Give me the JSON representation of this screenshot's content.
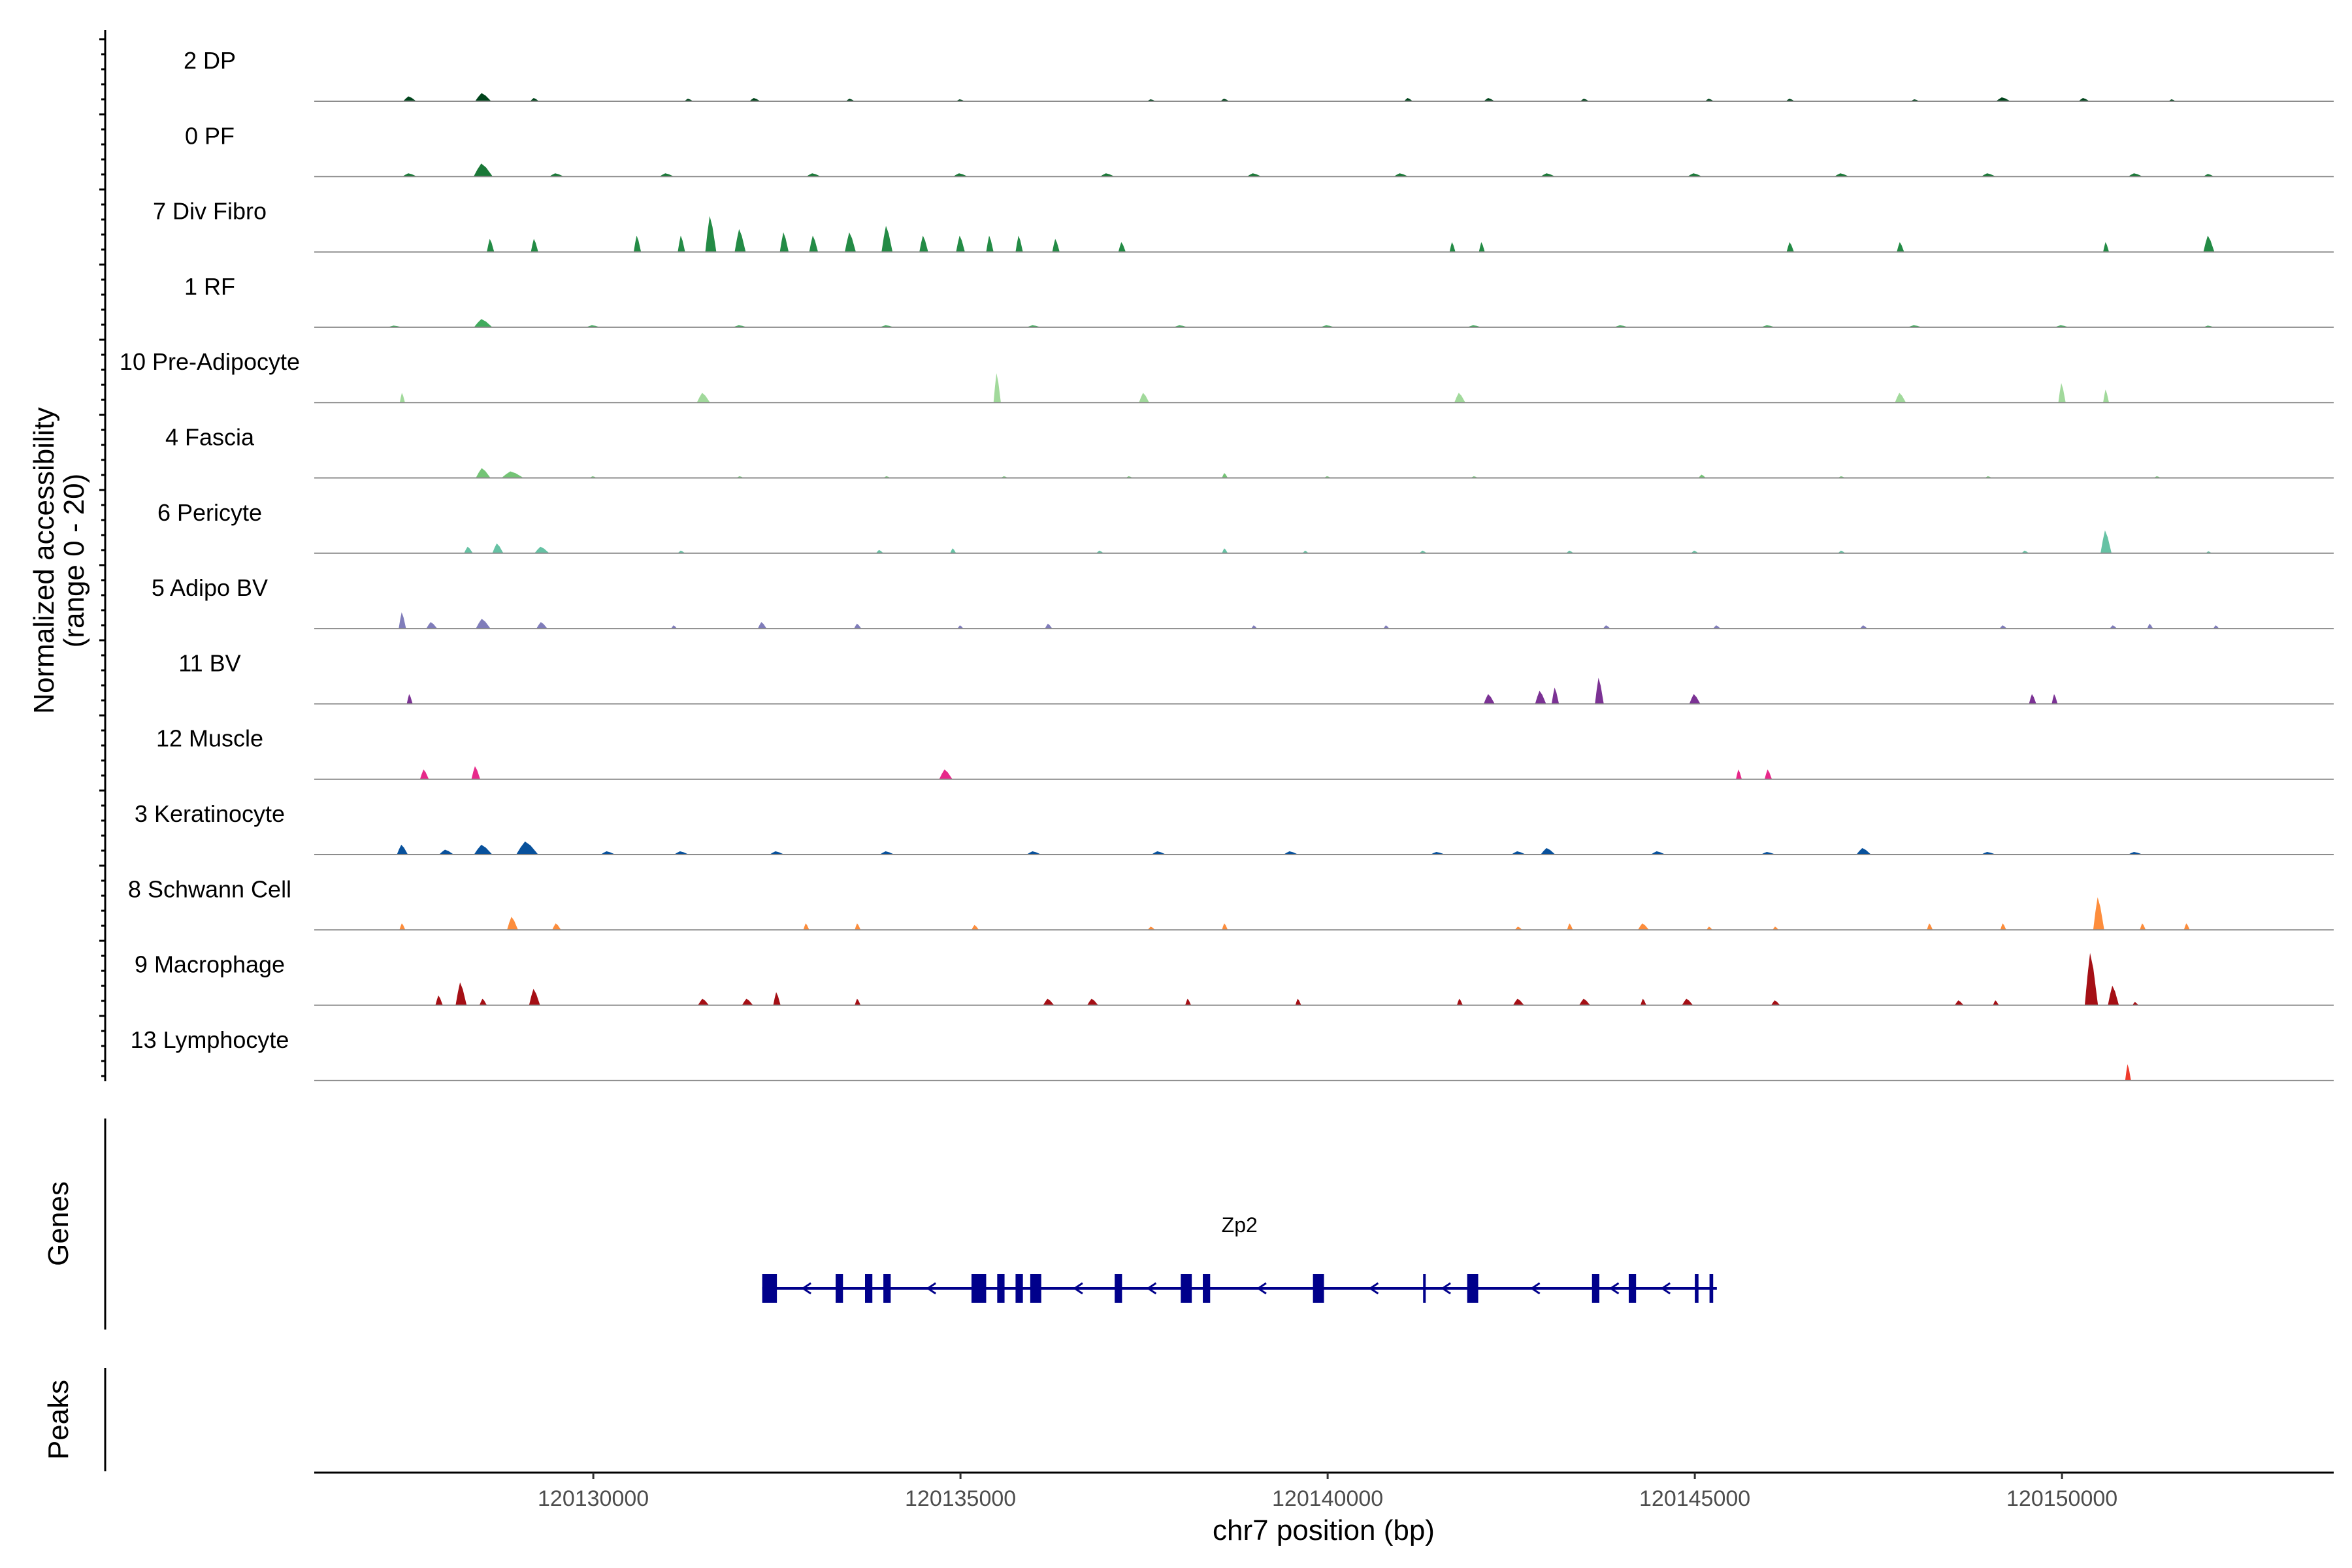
{
  "chart_data": {
    "type": "area",
    "title": "",
    "ylabel_line1": "Normalized accessibility",
    "ylabel_line2": "(range 0 - 20)",
    "xlabel": "chr7 position (bp)",
    "ylim": [
      0,
      20
    ],
    "xlim": [
      120126200,
      120153700
    ],
    "x_ticks": [
      120130000,
      120135000,
      120140000,
      120145000,
      120150000
    ],
    "x_tick_labels": [
      "120130000",
      "120135000",
      "120140000",
      "120145000",
      "120150000"
    ],
    "series": [
      {
        "name": "2 DP",
        "color": "#00441b",
        "peaks": [
          [
            120127500,
            1.5,
            180
          ],
          [
            120128500,
            2.5,
            220
          ],
          [
            120129200,
            1.0,
            120
          ],
          [
            120131300,
            0.8,
            120
          ],
          [
            120132200,
            1.0,
            150
          ],
          [
            120133500,
            0.8,
            120
          ],
          [
            120135000,
            0.6,
            120
          ],
          [
            120137600,
            0.6,
            120
          ],
          [
            120138600,
            0.8,
            120
          ],
          [
            120141100,
            1.0,
            120
          ],
          [
            120142200,
            1.0,
            150
          ],
          [
            120143500,
            0.8,
            120
          ],
          [
            120145200,
            0.8,
            120
          ],
          [
            120146300,
            0.8,
            120
          ],
          [
            120148000,
            0.6,
            120
          ],
          [
            120149200,
            1.2,
            200
          ],
          [
            120150300,
            1.0,
            150
          ],
          [
            120151500,
            0.6,
            100
          ]
        ]
      },
      {
        "name": "0 PF",
        "color": "#1a7837",
        "peaks": [
          [
            120127500,
            1.0,
            200
          ],
          [
            120128500,
            4.0,
            260
          ],
          [
            120129500,
            1.0,
            200
          ],
          [
            120131000,
            1.0,
            200
          ],
          [
            120133000,
            1.0,
            200
          ],
          [
            120135000,
            1.0,
            200
          ],
          [
            120137000,
            1.0,
            200
          ],
          [
            120139000,
            1.0,
            200
          ],
          [
            120141000,
            1.0,
            200
          ],
          [
            120143000,
            1.0,
            200
          ],
          [
            120145000,
            1.0,
            200
          ],
          [
            120147000,
            1.0,
            200
          ],
          [
            120149000,
            1.0,
            200
          ],
          [
            120151000,
            1.0,
            200
          ],
          [
            120152000,
            0.8,
            150
          ]
        ]
      },
      {
        "name": "7 Div Fibro",
        "color": "#238b45",
        "peaks": [
          [
            120128600,
            4.0,
            100
          ],
          [
            120129200,
            4.0,
            100
          ],
          [
            120130600,
            5.0,
            100
          ],
          [
            120131200,
            5.0,
            100
          ],
          [
            120131600,
            11.0,
            150
          ],
          [
            120132000,
            7.0,
            150
          ],
          [
            120132600,
            6.0,
            120
          ],
          [
            120133000,
            5.0,
            120
          ],
          [
            120133500,
            6.0,
            150
          ],
          [
            120134000,
            8.0,
            150
          ],
          [
            120134500,
            5.0,
            120
          ],
          [
            120135000,
            5.0,
            120
          ],
          [
            120135400,
            5.0,
            100
          ],
          [
            120135800,
            5.0,
            100
          ],
          [
            120136300,
            4.0,
            100
          ],
          [
            120137200,
            3.0,
            100
          ],
          [
            120141700,
            3.0,
            80
          ],
          [
            120142100,
            3.0,
            80
          ],
          [
            120146300,
            3.0,
            100
          ],
          [
            120147800,
            3.0,
            100
          ],
          [
            120150600,
            3.0,
            80
          ],
          [
            120152000,
            5.0,
            150
          ]
        ]
      },
      {
        "name": "1 RF",
        "color": "#41ab5d",
        "peaks": [
          [
            120127300,
            0.5,
            200
          ],
          [
            120128500,
            2.5,
            250
          ],
          [
            120130000,
            0.6,
            200
          ],
          [
            120132000,
            0.6,
            200
          ],
          [
            120134000,
            0.6,
            200
          ],
          [
            120136000,
            0.6,
            200
          ],
          [
            120138000,
            0.6,
            200
          ],
          [
            120140000,
            0.6,
            200
          ],
          [
            120142000,
            0.6,
            200
          ],
          [
            120144000,
            0.6,
            200
          ],
          [
            120146000,
            0.6,
            200
          ],
          [
            120148000,
            0.6,
            200
          ],
          [
            120150000,
            0.6,
            200
          ],
          [
            120152000,
            0.5,
            150
          ]
        ]
      },
      {
        "name": "10 Pre-Adipocyte",
        "color": "#a1d99b",
        "peaks": [
          [
            120127400,
            3.0,
            40
          ],
          [
            120131500,
            3.0,
            180
          ],
          [
            120135500,
            9.0,
            100
          ],
          [
            120137500,
            3.0,
            140
          ],
          [
            120141800,
            3.0,
            150
          ],
          [
            120147800,
            3.0,
            150
          ],
          [
            120150000,
            6.0,
            100
          ],
          [
            120150600,
            4.0,
            80
          ]
        ]
      },
      {
        "name": "4 Fascia",
        "color": "#74c476",
        "peaks": [
          [
            120128500,
            3.0,
            200
          ],
          [
            120128900,
            2.0,
            300
          ],
          [
            120130000,
            0.5,
            100
          ],
          [
            120132000,
            0.5,
            100
          ],
          [
            120134000,
            0.5,
            100
          ],
          [
            120135600,
            0.5,
            100
          ],
          [
            120137300,
            0.5,
            100
          ],
          [
            120138600,
            1.5,
            80
          ],
          [
            120140000,
            0.5,
            100
          ],
          [
            120142000,
            0.5,
            100
          ],
          [
            120145100,
            1.0,
            100
          ],
          [
            120147000,
            0.5,
            100
          ],
          [
            120149000,
            0.5,
            100
          ],
          [
            120151300,
            0.5,
            100
          ]
        ]
      },
      {
        "name": "6 Pericyte",
        "color": "#66c2a4",
        "peaks": [
          [
            120128300,
            2.0,
            120
          ],
          [
            120128700,
            3.0,
            150
          ],
          [
            120129300,
            2.0,
            200
          ],
          [
            120131200,
            0.8,
            100
          ],
          [
            120133900,
            1.0,
            100
          ],
          [
            120134900,
            1.5,
            80
          ],
          [
            120136900,
            0.8,
            100
          ],
          [
            120138600,
            1.5,
            80
          ],
          [
            120139700,
            0.8,
            80
          ],
          [
            120141300,
            0.8,
            100
          ],
          [
            120143300,
            0.8,
            100
          ],
          [
            120145000,
            0.8,
            100
          ],
          [
            120147000,
            0.8,
            100
          ],
          [
            120149500,
            0.8,
            100
          ],
          [
            120150600,
            7.0,
            150
          ],
          [
            120152000,
            0.6,
            80
          ]
        ]
      },
      {
        "name": "5 Adipo BV",
        "color": "#807dba",
        "peaks": [
          [
            120127400,
            5.0,
            100
          ],
          [
            120127800,
            2.0,
            150
          ],
          [
            120128500,
            3.0,
            200
          ],
          [
            120129300,
            2.0,
            150
          ],
          [
            120131100,
            1.0,
            80
          ],
          [
            120132300,
            2.0,
            120
          ],
          [
            120133600,
            1.5,
            100
          ],
          [
            120135000,
            1.0,
            80
          ],
          [
            120136200,
            1.5,
            100
          ],
          [
            120139000,
            1.0,
            80
          ],
          [
            120140800,
            1.0,
            80
          ],
          [
            120143800,
            1.0,
            100
          ],
          [
            120145300,
            1.0,
            100
          ],
          [
            120147300,
            1.0,
            100
          ],
          [
            120149200,
            1.0,
            100
          ],
          [
            120150700,
            1.0,
            100
          ],
          [
            120151200,
            1.5,
            80
          ],
          [
            120152100,
            1.0,
            80
          ]
        ]
      },
      {
        "name": "11 BV",
        "color": "#7b3294",
        "peaks": [
          [
            120127500,
            3.0,
            80
          ],
          [
            120142200,
            3.0,
            150
          ],
          [
            120142900,
            4.0,
            150
          ],
          [
            120143100,
            5.0,
            100
          ],
          [
            120143700,
            8.0,
            120
          ],
          [
            120145000,
            3.0,
            150
          ],
          [
            120149600,
            3.0,
            100
          ],
          [
            120149900,
            3.0,
            80
          ]
        ]
      },
      {
        "name": "12 Muscle",
        "color": "#e7298a",
        "peaks": [
          [
            120127700,
            3.0,
            120
          ],
          [
            120128400,
            4.0,
            120
          ],
          [
            120134800,
            3.0,
            180
          ],
          [
            120145600,
            3.0,
            80
          ],
          [
            120146000,
            3.0,
            100
          ]
        ]
      },
      {
        "name": "3 Keratinocyte",
        "color": "#08519c",
        "peaks": [
          [
            120127400,
            3.0,
            150
          ],
          [
            120128000,
            1.5,
            200
          ],
          [
            120128500,
            3.0,
            250
          ],
          [
            120129100,
            4.0,
            300
          ],
          [
            120130200,
            1.0,
            200
          ],
          [
            120131200,
            1.0,
            200
          ],
          [
            120132500,
            1.0,
            200
          ],
          [
            120134000,
            1.0,
            200
          ],
          [
            120136000,
            1.0,
            200
          ],
          [
            120137700,
            1.0,
            200
          ],
          [
            120139500,
            1.0,
            200
          ],
          [
            120141500,
            0.8,
            200
          ],
          [
            120142600,
            1.0,
            200
          ],
          [
            120143000,
            2.0,
            200
          ],
          [
            120144500,
            1.0,
            200
          ],
          [
            120146000,
            0.8,
            200
          ],
          [
            120147300,
            2.0,
            200
          ],
          [
            120149000,
            0.8,
            200
          ],
          [
            120151000,
            0.8,
            200
          ]
        ]
      },
      {
        "name": "8 Schwann Cell",
        "color": "#fd8d3c",
        "peaks": [
          [
            120127400,
            2.0,
            80
          ],
          [
            120128900,
            4.0,
            150
          ],
          [
            120129500,
            2.0,
            120
          ],
          [
            120132900,
            2.0,
            80
          ],
          [
            120133600,
            2.0,
            80
          ],
          [
            120135200,
            1.5,
            100
          ],
          [
            120137600,
            1.0,
            100
          ],
          [
            120138600,
            2.0,
            80
          ],
          [
            120142600,
            1.0,
            100
          ],
          [
            120143300,
            2.0,
            80
          ],
          [
            120144300,
            2.0,
            150
          ],
          [
            120145200,
            1.0,
            80
          ],
          [
            120146100,
            1.0,
            80
          ],
          [
            120148200,
            2.0,
            80
          ],
          [
            120149200,
            2.0,
            80
          ],
          [
            120150500,
            10.0,
            150
          ],
          [
            120151100,
            2.0,
            80
          ],
          [
            120151700,
            2.0,
            80
          ]
        ]
      },
      {
        "name": "9 Macrophage",
        "color": "#a50f15",
        "peaks": [
          [
            120127900,
            3.0,
            100
          ],
          [
            120128200,
            7.0,
            150
          ],
          [
            120128500,
            2.0,
            100
          ],
          [
            120129200,
            5.0,
            150
          ],
          [
            120131500,
            2.0,
            150
          ],
          [
            120132100,
            2.0,
            150
          ],
          [
            120132500,
            4.0,
            100
          ],
          [
            120133600,
            2.0,
            80
          ],
          [
            120136200,
            2.0,
            150
          ],
          [
            120136800,
            2.0,
            150
          ],
          [
            120138100,
            2.0,
            80
          ],
          [
            120139600,
            2.0,
            80
          ],
          [
            120141800,
            2.0,
            80
          ],
          [
            120142600,
            2.0,
            150
          ],
          [
            120143500,
            2.0,
            150
          ],
          [
            120144300,
            2.0,
            80
          ],
          [
            120144900,
            2.0,
            150
          ],
          [
            120146100,
            1.5,
            120
          ],
          [
            120148600,
            1.5,
            120
          ],
          [
            120149100,
            1.5,
            80
          ],
          [
            120150400,
            16.0,
            180
          ],
          [
            120150700,
            6.0,
            150
          ],
          [
            120151000,
            1.0,
            80
          ]
        ]
      },
      {
        "name": "13 Lymphocyte",
        "color": "#ef3b2c",
        "peaks": [
          [
            120150900,
            5.0,
            80
          ]
        ]
      }
    ],
    "genes": [
      {
        "name": "Zp2",
        "strand": "-",
        "start": 120132300,
        "end": 120145300,
        "exons": [
          [
            120132300,
            120132500
          ],
          [
            120133300,
            120133400
          ],
          [
            120133700,
            120133800
          ],
          [
            120133950,
            120134050
          ],
          [
            120135150,
            120135350
          ],
          [
            120135500,
            120135600
          ],
          [
            120135750,
            120135850
          ],
          [
            120135950,
            120136100
          ],
          [
            120137100,
            120137200
          ],
          [
            120138000,
            120138150
          ],
          [
            120138300,
            120138400
          ],
          [
            120139800,
            120139950
          ],
          [
            120141300,
            120141320
          ],
          [
            120141900,
            120142050
          ],
          [
            120143600,
            120143700
          ],
          [
            120144100,
            120144200
          ],
          [
            120145000,
            120145050
          ],
          [
            120145200,
            120145250
          ]
        ]
      }
    ],
    "panels": [
      "Genes",
      "Peaks"
    ],
    "peaks_track": []
  }
}
